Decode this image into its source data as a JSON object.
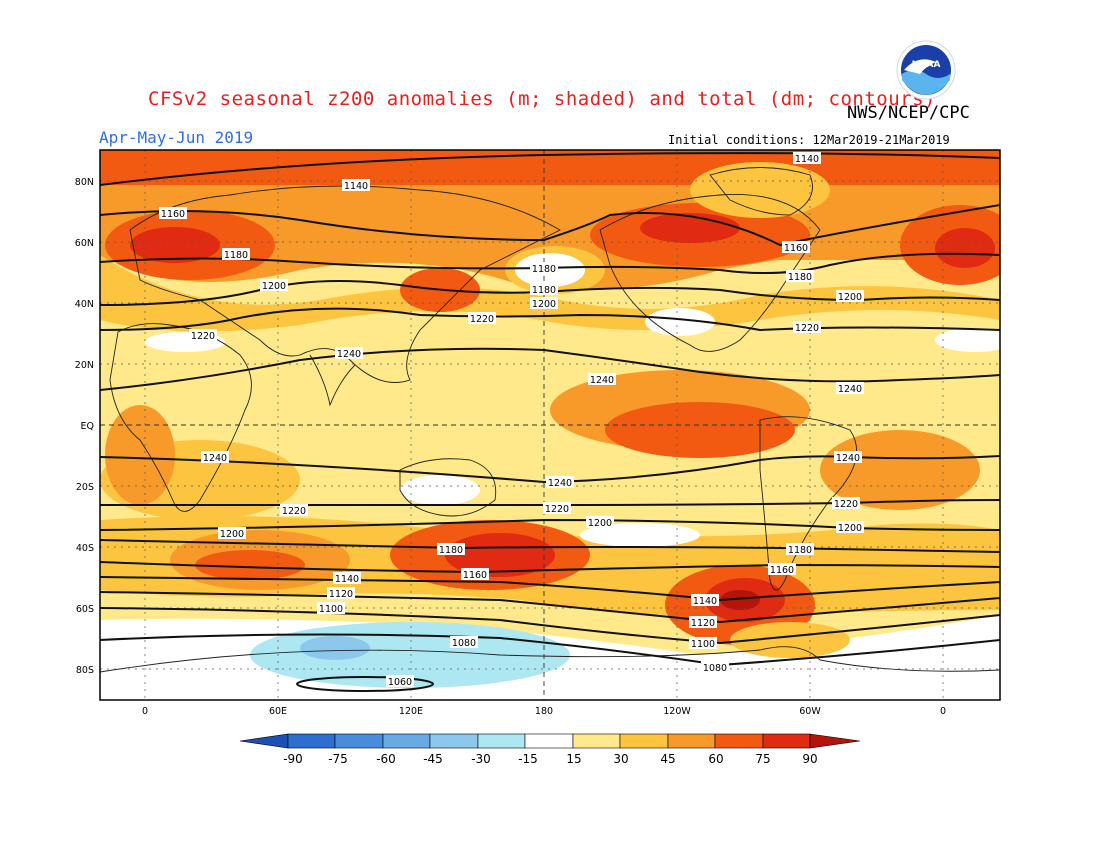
{
  "header": {
    "title": "CFSv2 seasonal z200 anomalies (m; shaded) and total (dm; contours)",
    "agency": "NWS/NCEP/CPC",
    "period": "Apr-May-Jun 2019",
    "initial_conditions": "Initial conditions: 12Mar2019-21Mar2019",
    "logo_text": "NOAA"
  },
  "map": {
    "lat_labels": [
      "80N",
      "60N",
      "40N",
      "20N",
      "EQ",
      "20S",
      "40S",
      "60S",
      "80S"
    ],
    "lon_labels": [
      "0",
      "60E",
      "120E",
      "180",
      "120W",
      "60W",
      "0"
    ],
    "contour_labels": [
      "1140",
      "1140",
      "1160",
      "1180",
      "1200",
      "1220",
      "1240",
      "1220",
      "1180",
      "1180",
      "1200",
      "1220",
      "1160",
      "1180",
      "1200",
      "1220",
      "1240",
      "1240",
      "1240",
      "1240",
      "1220",
      "1200",
      "1220",
      "1240",
      "1220",
      "1200",
      "1200",
      "1180",
      "1140",
      "1120",
      "1100",
      "1080",
      "1060",
      "1180",
      "1160",
      "1140",
      "1120",
      "1100",
      "1080",
      "1160",
      "1180",
      "1200",
      "1220"
    ],
    "colors": {
      "c15": "#ffe98a",
      "c30": "#fdc440",
      "c45": "#f89a2a",
      "c60": "#f25a12",
      "c75": "#e02a12",
      "c90": "#b4140a",
      "n15": "#ade8f2",
      "n30": "#8cc8ec",
      "n45": "#6aaae4",
      "n60": "#4a8cdc",
      "n75": "#2e6ed0",
      "n90": "#1c50b4"
    }
  },
  "colorbar": {
    "labels": [
      "-90",
      "-75",
      "-60",
      "-45",
      "-30",
      "-15",
      "15",
      "30",
      "45",
      "60",
      "75",
      "90"
    ],
    "colors": [
      "#1c50b4",
      "#2e6ed0",
      "#4a8cdc",
      "#6aaae4",
      "#8cc8ec",
      "#ade8f2",
      "#ffffff",
      "#ffe98a",
      "#fdc440",
      "#f89a2a",
      "#f25a12",
      "#e02a12",
      "#b4140a"
    ]
  }
}
